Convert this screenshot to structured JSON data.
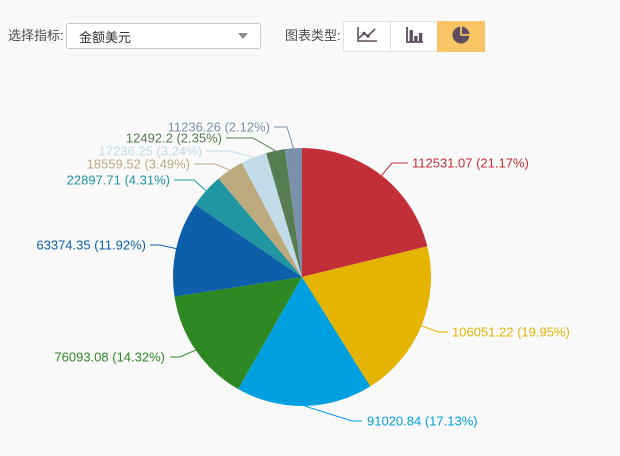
{
  "toolbar": {
    "indicator_label": "选择指标:",
    "indicator_value": "金额美元",
    "chart_type_label": "图表类型:",
    "buttons": [
      {
        "icon": "line-chart-icon",
        "type": "line",
        "active": false
      },
      {
        "icon": "bar-chart-icon",
        "type": "bar",
        "active": false
      },
      {
        "icon": "pie-chart-icon",
        "type": "pie",
        "active": true
      }
    ],
    "active_button_color": "#f9c564",
    "icon_color": "#5d4f5e"
  },
  "chart_data": {
    "type": "pie",
    "title": "",
    "indicator": "金额美元",
    "legend_position": "none",
    "label_format": "value (pct%)",
    "items": [
      {
        "value": 112531.07,
        "pct": 21.17,
        "color": "#c22f38"
      },
      {
        "value": 106051.22,
        "pct": 19.95,
        "color": "#e5b301"
      },
      {
        "value": 91020.84,
        "pct": 17.13,
        "color": "#009fdf"
      },
      {
        "value": 76093.08,
        "pct": 14.32,
        "color": "#2e8823"
      },
      {
        "value": 63374.35,
        "pct": 11.92,
        "color": "#0e5fa9"
      },
      {
        "value": 22897.71,
        "pct": 4.31,
        "color": "#2096a3"
      },
      {
        "value": 18559.52,
        "pct": 3.49,
        "color": "#bcaa7e"
      },
      {
        "value": 17236.25,
        "pct": 3.24,
        "color": "#c2dbe9"
      },
      {
        "value": 12492.2,
        "pct": 2.35,
        "color": "#587c52"
      },
      {
        "value": 11236.26,
        "pct": 2.12,
        "color": "#7b90ab"
      }
    ]
  }
}
